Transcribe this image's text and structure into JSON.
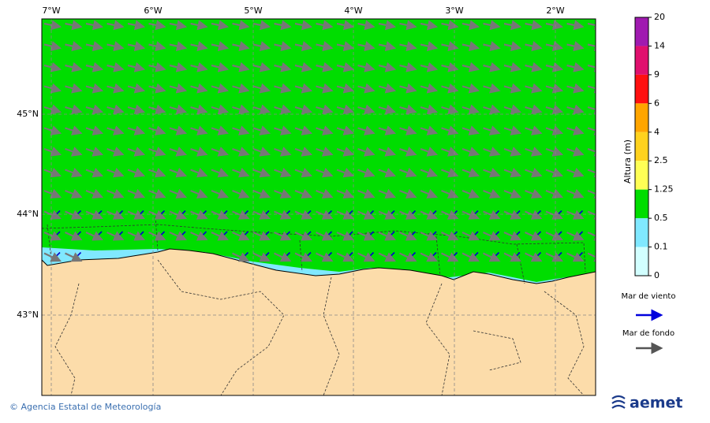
{
  "map": {
    "lon_labels": [
      "7°W",
      "6°W",
      "5°W",
      "4°W",
      "3°W",
      "2°W"
    ],
    "lat_labels": [
      "45°N",
      "44°N",
      "43°N"
    ]
  },
  "colorbar": {
    "title": "Altura (m)",
    "levels": [
      20,
      14,
      9,
      6,
      4,
      2.5,
      1.25,
      0.5,
      0.1,
      0
    ],
    "colors": [
      "#a01ab0",
      "#e0106e",
      "#ff1010",
      "#ffa500",
      "#ffd21e",
      "#ffff55",
      "#00dd00",
      "#80e8ff",
      "#d2ffff"
    ]
  },
  "legend": {
    "items": [
      "Mar de viento",
      "Mar de fondo"
    ]
  },
  "footer": {
    "credit": "© Agencia Estatal de Meteorología",
    "logo": "aemet"
  }
}
